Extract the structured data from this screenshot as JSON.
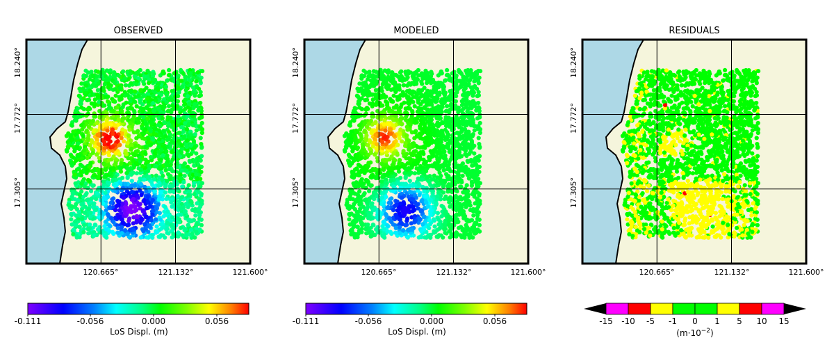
{
  "figure": {
    "panels": [
      {
        "title": "OBSERVED",
        "yticks": [
          "18.240°",
          "17.772°",
          "17.305°"
        ],
        "xticks": [
          "120.665°",
          "121.132°",
          "121.600°"
        ],
        "field": "observed"
      },
      {
        "title": "MODELED",
        "yticks": [
          "18.240°",
          "17.772°",
          "17.305°"
        ],
        "xticks": [
          "120.665°",
          "121.132°",
          "121.600°"
        ],
        "field": "modeled"
      },
      {
        "title": "RESIDUALS",
        "yticks": [
          "18.240°",
          "17.772°",
          "17.305°"
        ],
        "xticks": [
          "120.665°",
          "121.132°",
          "121.600°"
        ],
        "field": "residual"
      }
    ],
    "colorbars": [
      {
        "type": "continuous",
        "ticks": [
          "-0.111",
          "-0.056",
          "0.000",
          "0.056"
        ],
        "label": "LoS Displ. (m)"
      },
      {
        "type": "continuous",
        "ticks": [
          "-0.111",
          "-0.056",
          "0.000",
          "0.056"
        ],
        "label": "LoS Displ. (m)"
      },
      {
        "type": "discrete",
        "ticks": [
          "-15",
          "-10",
          "-5",
          "-1",
          "0",
          "1",
          "5",
          "10",
          "15"
        ],
        "label_main": "(m·10",
        "label_sup": "−2",
        "label_end": ")",
        "bins": [
          {
            "from": -15,
            "to": -10,
            "color": "#ff00ff"
          },
          {
            "from": -10,
            "to": -5,
            "color": "#ff0000"
          },
          {
            "from": -5,
            "to": -1,
            "color": "#ffff00"
          },
          {
            "from": -1,
            "to": 0,
            "color": "#00ff00"
          },
          {
            "from": 0,
            "to": 1,
            "color": "#00ff00"
          },
          {
            "from": 1,
            "to": 5,
            "color": "#ffff00"
          },
          {
            "from": 5,
            "to": 10,
            "color": "#ff0000"
          },
          {
            "from": 10,
            "to": 15,
            "color": "#ff00ff"
          }
        ]
      }
    ],
    "colors": {
      "sea": "#add8e6",
      "land": "#f5f5dc",
      "coastline": "#000000",
      "grid": "#000000"
    }
  },
  "chart_data": {
    "type": "scatter",
    "projection": "lon-lat",
    "xlabel": "",
    "ylabel": "",
    "xlim": [
      120.198,
      121.6
    ],
    "ylim": [
      16.838,
      18.24
    ],
    "xticks": [
      120.665,
      121.132,
      121.6
    ],
    "yticks": [
      18.24,
      17.772,
      17.305
    ],
    "grid": true,
    "sample_extent": {
      "lon": [
        120.45,
        121.3
      ],
      "lat": [
        17.0,
        18.05
      ]
    },
    "displacement_colorscale": {
      "min": -0.111,
      "max": 0.084,
      "unit": "m"
    },
    "observed": {
      "uplift_max": {
        "lon": 120.72,
        "lat": 17.62,
        "value": 0.084
      },
      "subsidence_max": {
        "lon": 120.86,
        "lat": 17.18,
        "value": -0.111
      }
    },
    "modeled": {
      "uplift_max": {
        "lon": 120.7,
        "lat": 17.63,
        "value": 0.07
      },
      "subsidence_max": {
        "lon": 120.83,
        "lat": 17.17,
        "value": -0.09
      }
    },
    "residual_scale": {
      "unit": "m·10^-2",
      "bounds": [
        -15,
        -10,
        -5,
        -1,
        0,
        1,
        5,
        10,
        15
      ]
    }
  }
}
